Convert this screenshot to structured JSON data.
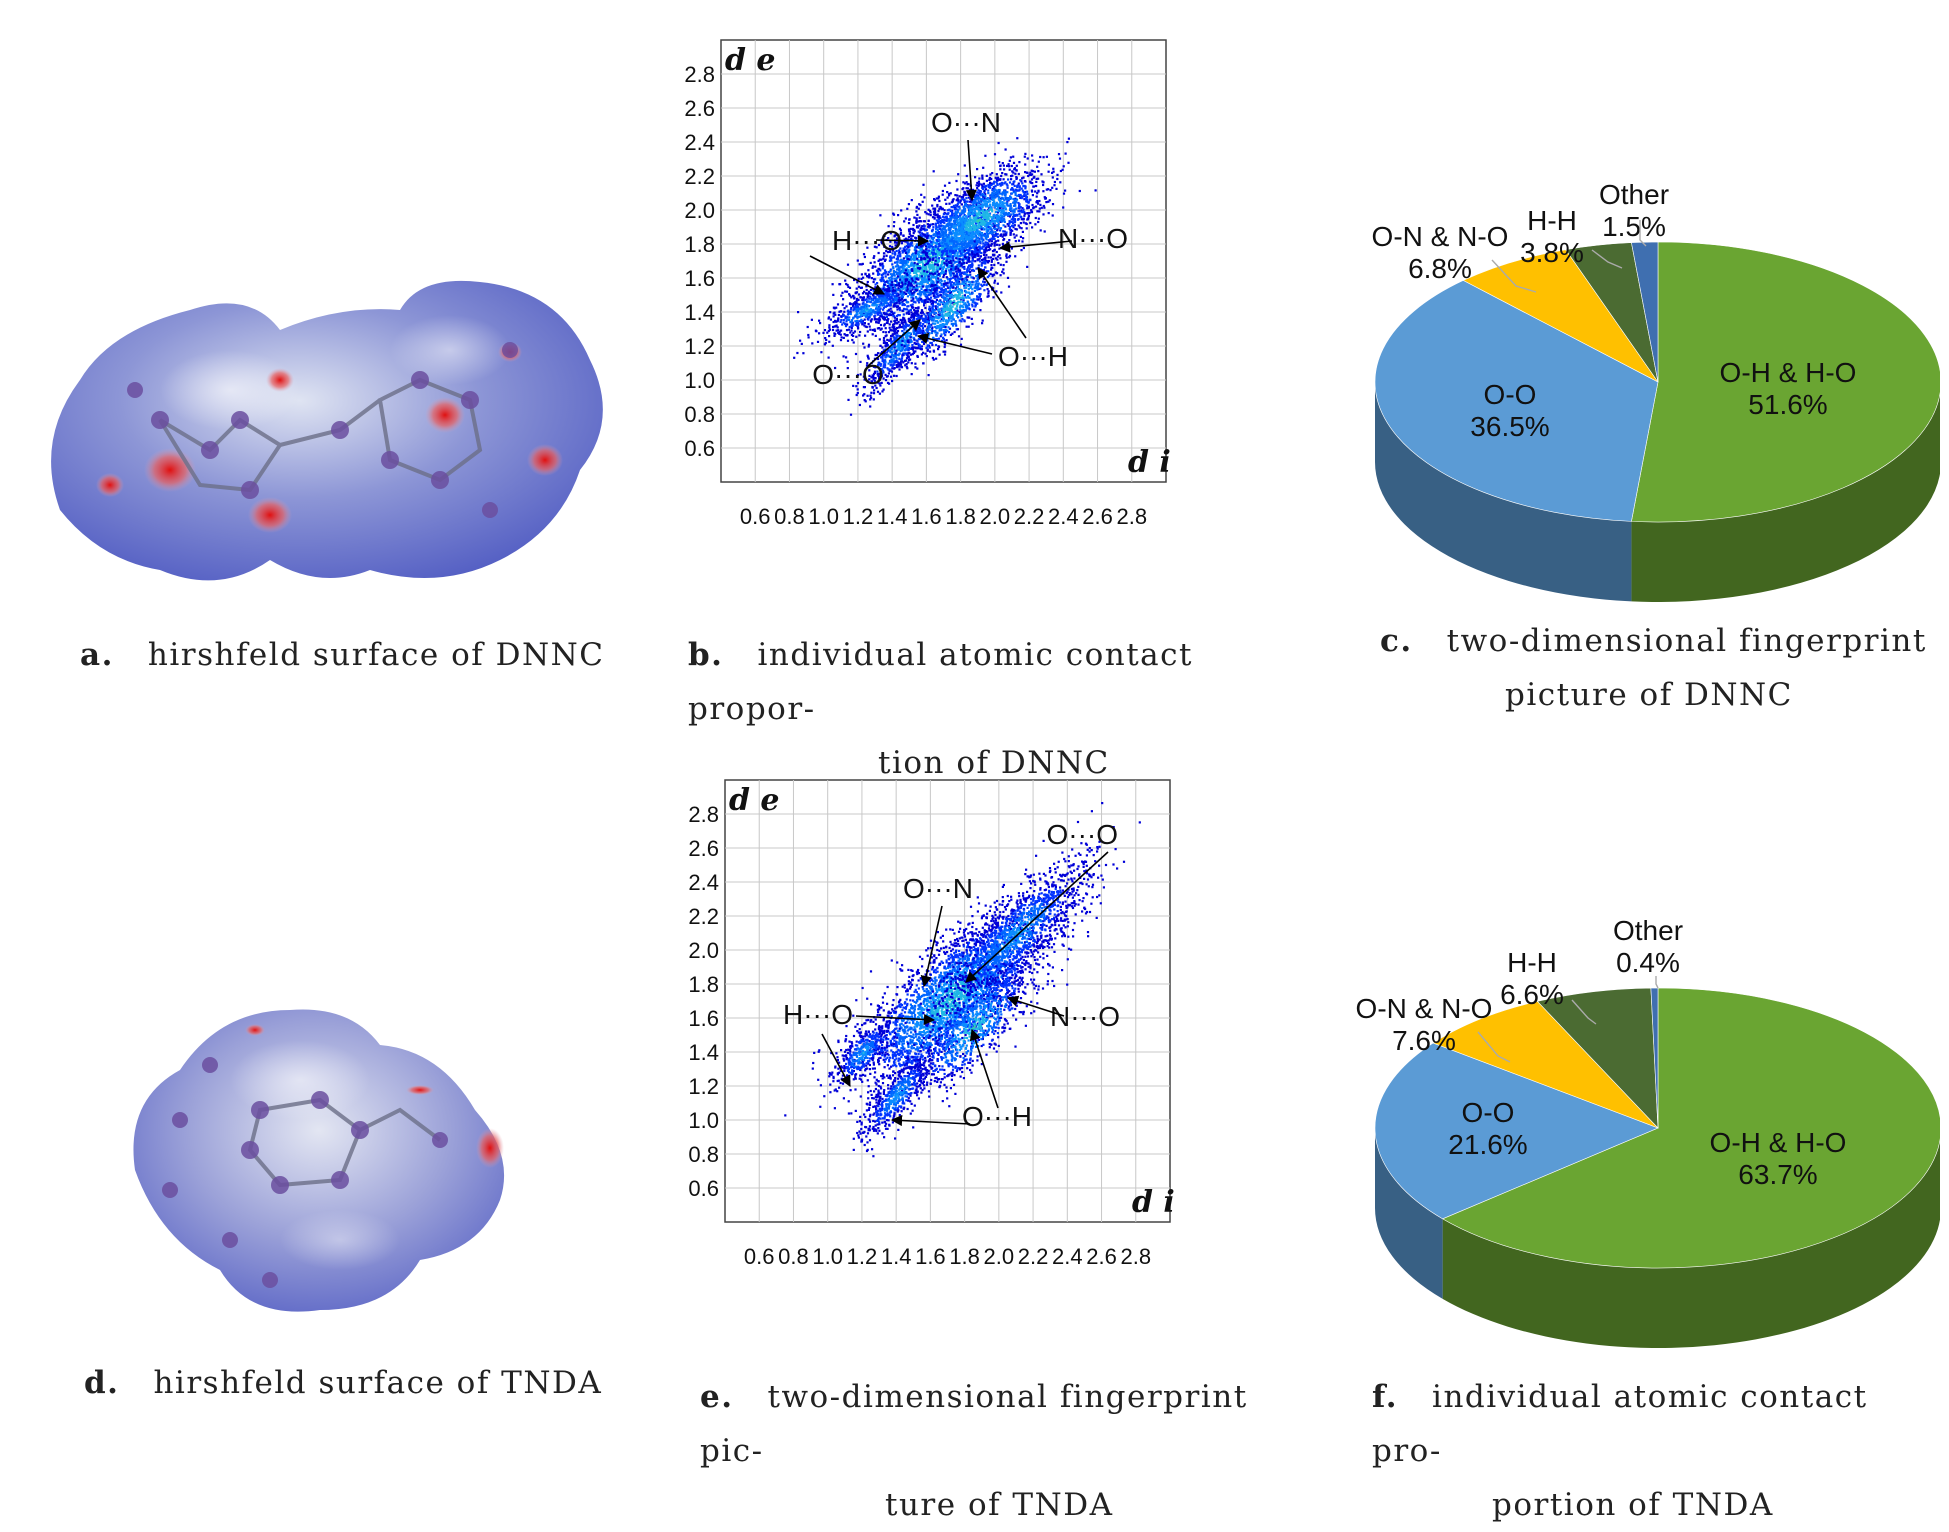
{
  "captions": {
    "a": {
      "label": "a.",
      "text": "hirshfeld surface of DNNC"
    },
    "b": {
      "label": "b.",
      "line1": "individual atomic contact propor-",
      "line2": "tion of DNNC"
    },
    "c": {
      "label": "c.",
      "line1": "two-dimensional fingerprint",
      "line2": "picture of DNNC"
    },
    "d": {
      "label": "d.",
      "text": "hirshfeld surface of TNDA"
    },
    "e": {
      "label": "e.",
      "line1": "two-dimensional fingerprint pic-",
      "line2": "ture of TNDA"
    },
    "f": {
      "label": "f.",
      "line1": "individual atomic contact pro-",
      "line2": "portion of TNDA"
    }
  },
  "fingerprint_axes": {
    "x_label": "d i",
    "y_label": "d e",
    "ticks": [
      "0.6",
      "0.8",
      "1.0",
      "1.2",
      "1.4",
      "1.6",
      "1.8",
      "2.0",
      "2.2",
      "2.4",
      "2.6",
      "2.8"
    ]
  },
  "fingerprint_b": {
    "annotations": [
      "O···N",
      "H···O",
      "N···O",
      "O···O",
      "O···H"
    ]
  },
  "fingerprint_e": {
    "annotations": [
      "O···O",
      "O···N",
      "H···O",
      "N···O",
      "O···H"
    ]
  },
  "chart_data": [
    {
      "type": "pie",
      "slices": [
        {
          "name": "O-H & H-O",
          "value": 51.6,
          "label": "51.6%",
          "color": "#6aa532"
        },
        {
          "name": "O-O",
          "value": 36.5,
          "label": "36.5%",
          "color": "#5b9bd5"
        },
        {
          "name": "O-N & N-O",
          "value": 6.8,
          "label": "6.8%",
          "color": "#ffc000"
        },
        {
          "name": "H-H",
          "value": 3.8,
          "label": "3.8%",
          "color": "#4b6b32"
        },
        {
          "name": "Other",
          "value": 1.5,
          "label": "1.5%",
          "color": "#3f6fb0"
        }
      ]
    },
    {
      "type": "pie",
      "slices": [
        {
          "name": "O-H & H-O",
          "value": 63.7,
          "label": "63.7%",
          "color": "#6aa532"
        },
        {
          "name": "O-O",
          "value": 21.6,
          "label": "21.6%",
          "color": "#5b9bd5"
        },
        {
          "name": "O-N & N-O",
          "value": 7.6,
          "label": "7.6%",
          "color": "#ffc000"
        },
        {
          "name": "H-H",
          "value": 6.6,
          "label": "6.6%",
          "color": "#4b6b32"
        },
        {
          "name": "Other",
          "value": 0.4,
          "label": "0.4%",
          "color": "#3f6fb0"
        }
      ]
    }
  ]
}
